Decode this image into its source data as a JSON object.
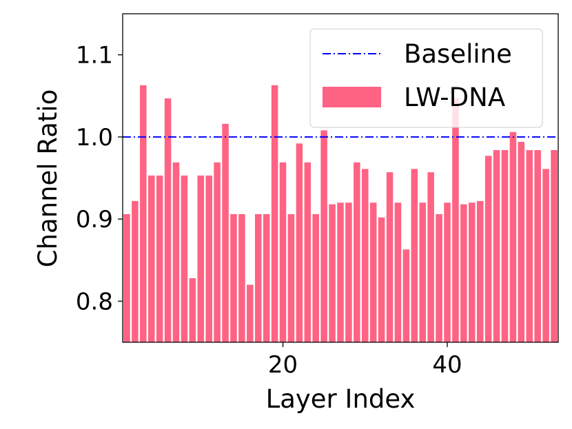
{
  "chart_data": {
    "type": "bar",
    "xlabel": "Layer Index",
    "ylabel": "Channel Ratio",
    "xlim": [
      0.5,
      53.5
    ],
    "ylim": [
      0.75,
      1.15
    ],
    "xticks": [
      20,
      40
    ],
    "yticks": [
      0.8,
      0.9,
      1.0,
      1.1
    ],
    "xtick_labels": [
      "20",
      "40"
    ],
    "ytick_labels": [
      "0.8",
      "0.9",
      "1.0",
      "1.1"
    ],
    "grid": false,
    "legend_position": "top-right",
    "series": [
      {
        "name": "Baseline",
        "kind": "line",
        "style": "dash-dot",
        "color": "#0000ff",
        "value": 1.0
      },
      {
        "name": "LW-DNA",
        "kind": "bar",
        "color": "#ff6384",
        "x": [
          1,
          2,
          3,
          4,
          5,
          6,
          7,
          8,
          9,
          10,
          11,
          12,
          13,
          14,
          15,
          16,
          17,
          18,
          19,
          20,
          21,
          22,
          23,
          24,
          25,
          26,
          27,
          28,
          29,
          30,
          31,
          32,
          33,
          34,
          35,
          36,
          37,
          38,
          39,
          40,
          41,
          42,
          43,
          44,
          45,
          46,
          47,
          48,
          49,
          50,
          51,
          52,
          53
        ],
        "values": [
          0.906,
          0.922,
          1.063,
          0.953,
          0.953,
          1.047,
          0.969,
          0.953,
          0.828,
          0.953,
          0.953,
          0.969,
          1.016,
          0.906,
          0.906,
          0.82,
          0.906,
          0.906,
          1.063,
          0.969,
          0.906,
          0.992,
          0.969,
          0.906,
          1.008,
          0.918,
          0.92,
          0.92,
          0.969,
          0.961,
          0.92,
          0.902,
          0.957,
          0.92,
          0.863,
          0.961,
          0.92,
          0.957,
          0.906,
          0.92,
          1.047,
          0.918,
          0.92,
          0.922,
          0.977,
          0.984,
          0.984,
          1.006,
          0.994,
          0.984,
          0.984,
          0.961,
          0.984
        ]
      }
    ]
  }
}
